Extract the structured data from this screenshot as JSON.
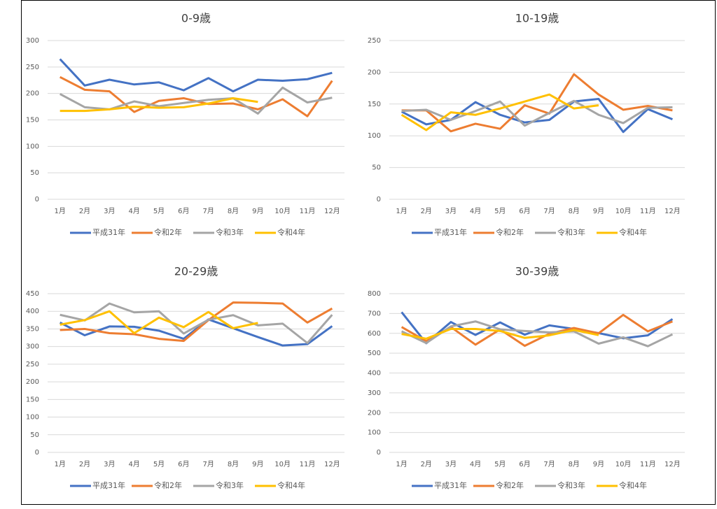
{
  "chart_data": [
    {
      "type": "line",
      "title": "0-9歳",
      "categories": [
        "1月",
        "2月",
        "3月",
        "4月",
        "5月",
        "6月",
        "7月",
        "8月",
        "9月",
        "10月",
        "11月",
        "12月"
      ],
      "ylim": [
        0,
        300
      ],
      "yticks": [
        0,
        50,
        100,
        150,
        200,
        250,
        300
      ],
      "grid": true,
      "legend": "bottom",
      "series": [
        {
          "name": "平成31年",
          "color": "#4472c4",
          "values": [
            265,
            215,
            226,
            217,
            221,
            206,
            229,
            204,
            226,
            224,
            227,
            239
          ]
        },
        {
          "name": "令和2年",
          "color": "#ed7d31",
          "values": [
            231,
            207,
            204,
            165,
            186,
            191,
            180,
            181,
            170,
            189,
            157,
            224
          ]
        },
        {
          "name": "令和3年",
          "color": "#a5a5a5",
          "values": [
            199,
            174,
            170,
            185,
            176,
            182,
            188,
            191,
            162,
            211,
            183,
            192
          ]
        },
        {
          "name": "令和4年",
          "color": "#ffc000",
          "values": [
            167,
            167,
            170,
            175,
            173,
            174,
            181,
            191,
            184,
            null,
            null,
            null
          ]
        }
      ]
    },
    {
      "type": "line",
      "title": "10-19歳",
      "categories": [
        "1月",
        "2月",
        "3月",
        "4月",
        "5月",
        "6月",
        "7月",
        "8月",
        "9月",
        "10月",
        "11月",
        "12月"
      ],
      "ylim": [
        0,
        250
      ],
      "yticks": [
        0,
        50,
        100,
        150,
        200,
        250
      ],
      "grid": true,
      "legend": "bottom",
      "series": [
        {
          "name": "平成31年",
          "color": "#4472c4",
          "values": [
            138,
            118,
            125,
            153,
            133,
            121,
            125,
            154,
            158,
            106,
            142,
            126
          ]
        },
        {
          "name": "令和2年",
          "color": "#ed7d31",
          "values": [
            140,
            140,
            107,
            119,
            111,
            148,
            135,
            197,
            165,
            141,
            147,
            140
          ]
        },
        {
          "name": "令和3年",
          "color": "#a5a5a5",
          "values": [
            139,
            141,
            125,
            139,
            154,
            116,
            136,
            155,
            133,
            120,
            144,
            145
          ]
        },
        {
          "name": "令和4年",
          "color": "#ffc000",
          "values": [
            133,
            109,
            137,
            133,
            143,
            154,
            165,
            143,
            148,
            null,
            null,
            null
          ]
        }
      ]
    },
    {
      "type": "line",
      "title": "20-29歳",
      "categories": [
        "1月",
        "2月",
        "3月",
        "4月",
        "5月",
        "6月",
        "7月",
        "8月",
        "9月",
        "10月",
        "11月",
        "12月"
      ],
      "ylim": [
        0,
        450
      ],
      "yticks": [
        0,
        50,
        100,
        150,
        200,
        250,
        300,
        350,
        400,
        450
      ],
      "grid": true,
      "legend": "bottom",
      "series": [
        {
          "name": "平成31年",
          "color": "#4472c4",
          "values": [
            368,
            332,
            357,
            356,
            345,
            322,
            377,
            352,
            327,
            303,
            307,
            358
          ]
        },
        {
          "name": "令和2年",
          "color": "#ed7d31",
          "values": [
            347,
            350,
            338,
            335,
            322,
            316,
            375,
            425,
            424,
            422,
            368,
            408
          ]
        },
        {
          "name": "令和3年",
          "color": "#a5a5a5",
          "values": [
            390,
            374,
            422,
            397,
            400,
            337,
            376,
            389,
            360,
            365,
            310,
            390
          ]
        },
        {
          "name": "令和4年",
          "color": "#ffc000",
          "values": [
            362,
            375,
            400,
            338,
            382,
            355,
            398,
            352,
            367,
            null,
            null,
            null
          ]
        }
      ]
    },
    {
      "type": "line",
      "title": "30-39歳",
      "categories": [
        "1月",
        "2月",
        "3月",
        "4月",
        "5月",
        "6月",
        "7月",
        "8月",
        "9月",
        "10月",
        "11月",
        "12月"
      ],
      "ylim": [
        0,
        800
      ],
      "yticks": [
        0,
        100,
        200,
        300,
        400,
        500,
        600,
        700,
        800
      ],
      "grid": true,
      "legend": "bottom",
      "series": [
        {
          "name": "平成31年",
          "color": "#4472c4",
          "values": [
            707,
            550,
            657,
            592,
            655,
            593,
            640,
            622,
            601,
            575,
            590,
            672
          ]
        },
        {
          "name": "令和2年",
          "color": "#ed7d31",
          "values": [
            632,
            560,
            632,
            543,
            620,
            537,
            598,
            627,
            600,
            693,
            610,
            660
          ]
        },
        {
          "name": "令和3年",
          "color": "#a5a5a5",
          "values": [
            610,
            551,
            635,
            660,
            620,
            612,
            605,
            610,
            548,
            580,
            535,
            595
          ]
        },
        {
          "name": "令和4年",
          "color": "#ffc000",
          "values": [
            597,
            573,
            622,
            622,
            612,
            577,
            590,
            617,
            591,
            null,
            null,
            null
          ]
        }
      ]
    }
  ]
}
